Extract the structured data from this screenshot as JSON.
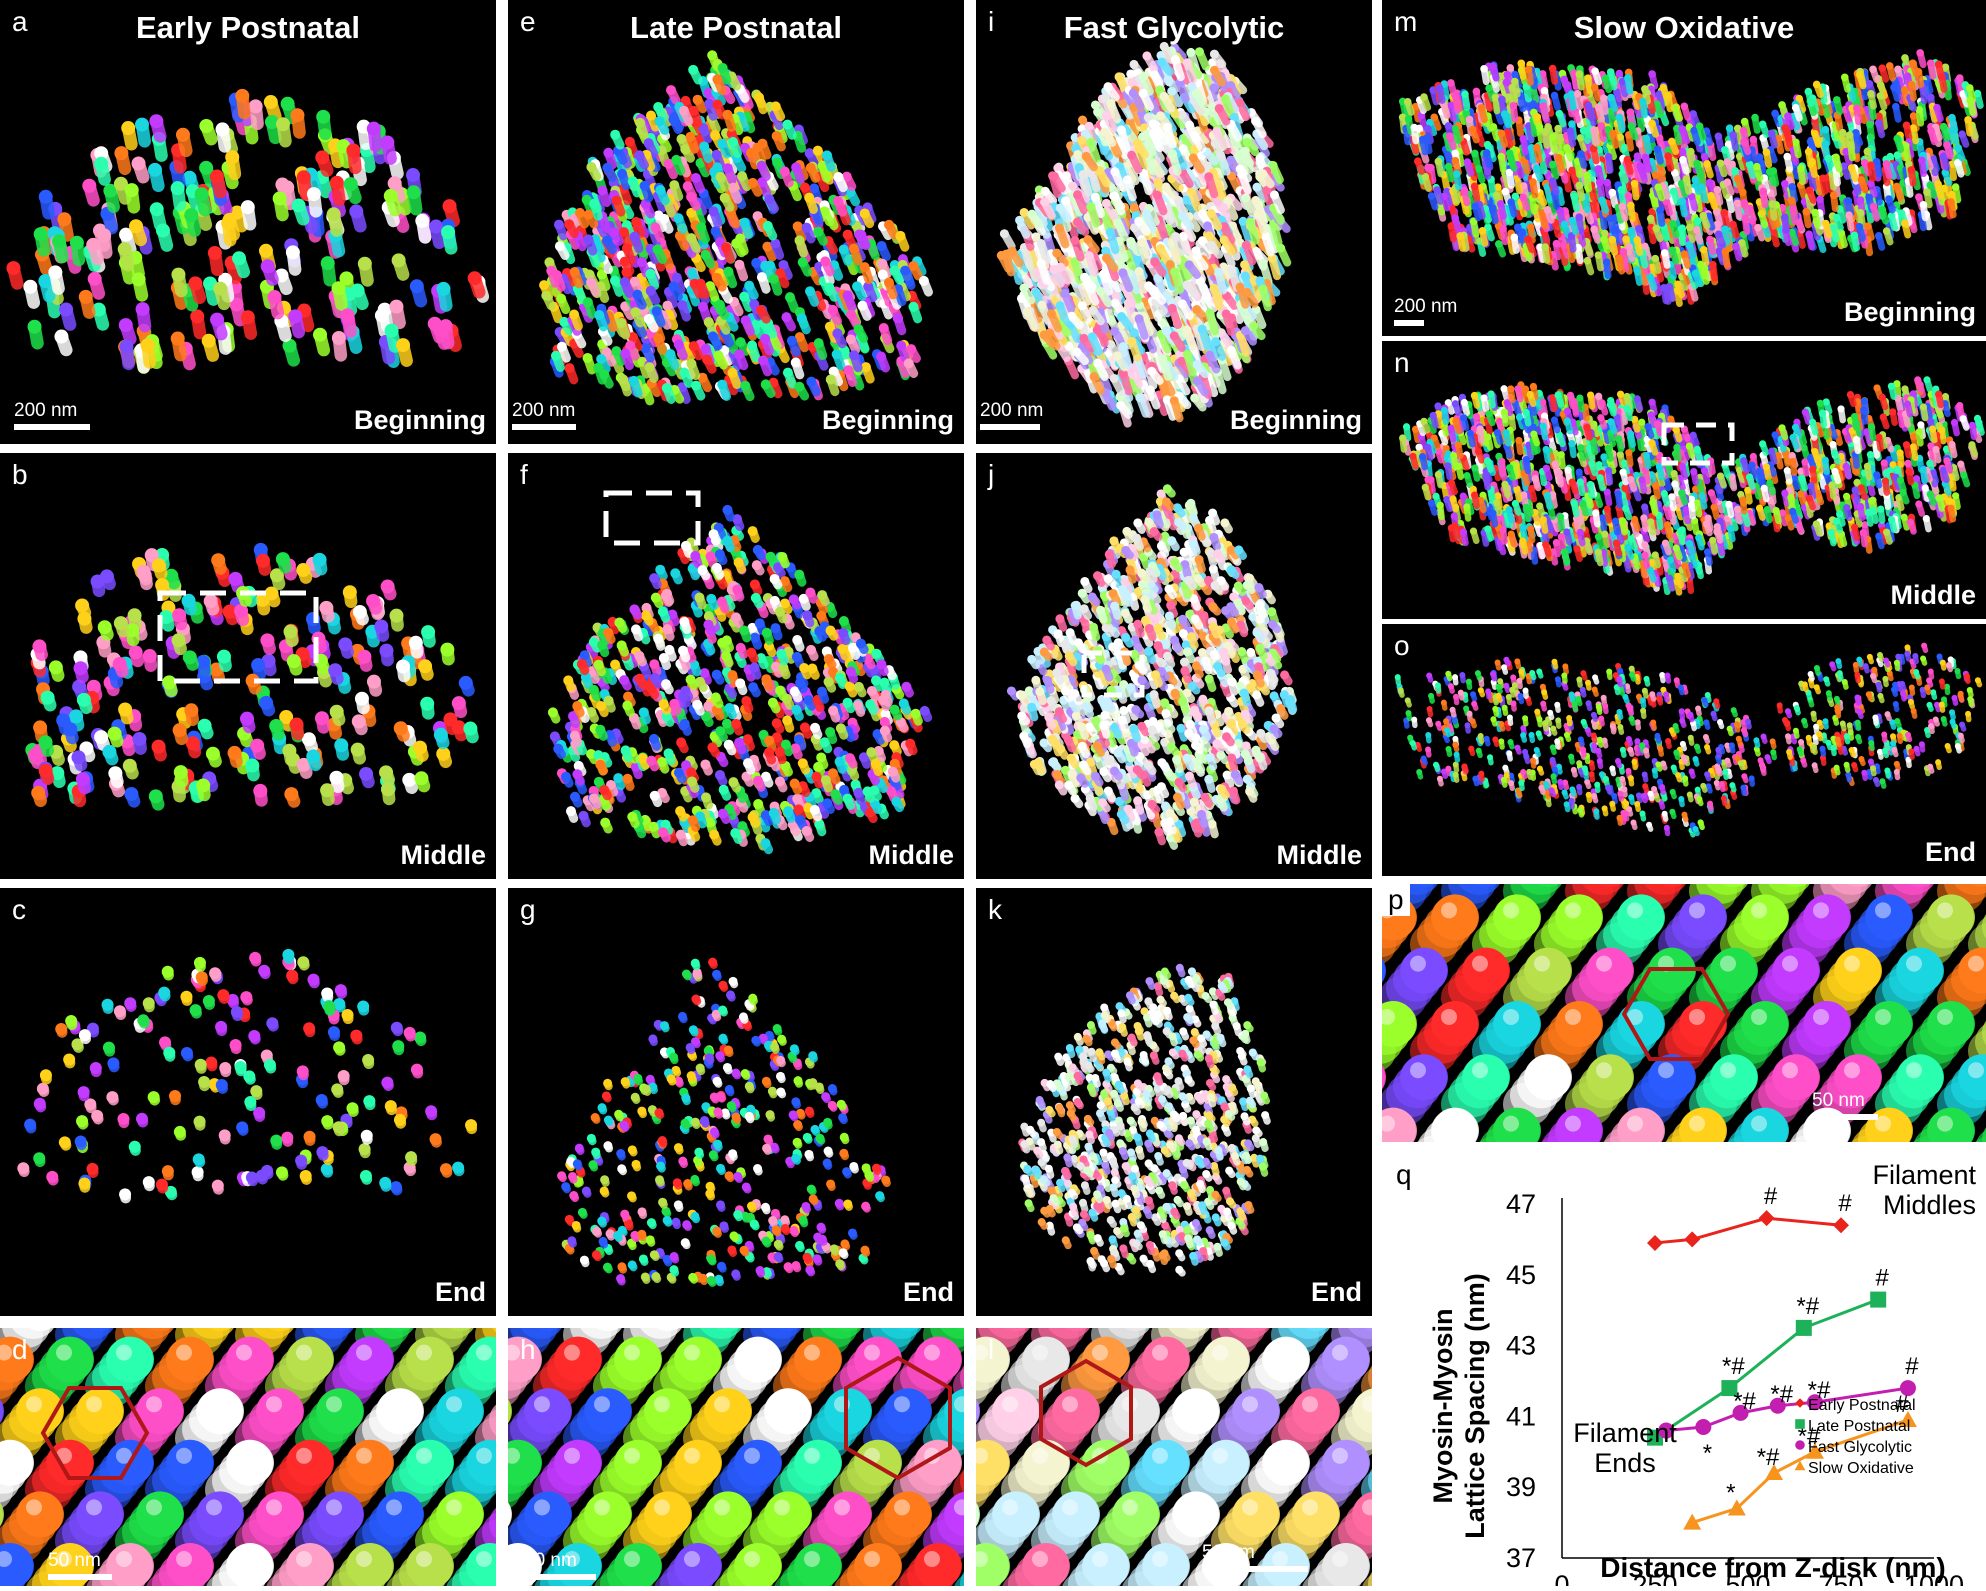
{
  "columns": [
    {
      "title": "Early Postnatal"
    },
    {
      "title": "Late Postnatal"
    },
    {
      "title": "Fast Glycolytic"
    },
    {
      "title": "Slow Oxidative"
    }
  ],
  "panels": [
    {
      "id": "a",
      "corner": "Beginning",
      "scale": "200 nm",
      "palette": "bright"
    },
    {
      "id": "b",
      "corner": "Middle",
      "palette": "bright"
    },
    {
      "id": "c",
      "corner": "End",
      "palette": "bright"
    },
    {
      "id": "d",
      "scale": "50 nm",
      "palette": "bright"
    },
    {
      "id": "e",
      "corner": "Beginning",
      "scale": "200 nm",
      "palette": "bright"
    },
    {
      "id": "f",
      "corner": "Middle",
      "palette": "bright"
    },
    {
      "id": "g",
      "corner": "End",
      "palette": "bright"
    },
    {
      "id": "h",
      "scale": "50 nm",
      "palette": "bright"
    },
    {
      "id": "i",
      "corner": "Beginning",
      "scale": "200 nm",
      "palette": "pastel"
    },
    {
      "id": "j",
      "corner": "Middle",
      "palette": "pastel"
    },
    {
      "id": "k",
      "corner": "End",
      "palette": "pastel"
    },
    {
      "id": "l",
      "scale": "50 nm",
      "palette": "pastel"
    },
    {
      "id": "m",
      "corner": "Beginning",
      "scale": "200 nm",
      "palette": "bright"
    },
    {
      "id": "n",
      "corner": "Middle",
      "palette": "bright"
    },
    {
      "id": "o",
      "corner": "End",
      "palette": "bright"
    },
    {
      "id": "p",
      "scale": "50 nm",
      "palette": "bright"
    },
    {
      "id": "q"
    }
  ],
  "colors": {
    "hexagon": "#b01818",
    "bright": [
      "#ff2a2a",
      "#ffd11a",
      "#1fe04a",
      "#2a5bff",
      "#c23bff",
      "#1ad6e0",
      "#ff7a1a",
      "#ff4fc8",
      "#9aff2a",
      "#ffffff",
      "#7a4bff",
      "#2affb0",
      "#ff9ec7",
      "#b8e04a"
    ],
    "pastel": [
      "#ffffff",
      "#f4f4d0",
      "#c8f0ff",
      "#ffd0e8",
      "#d8ffd0",
      "#ff6aa0",
      "#ffe066",
      "#66e0ff",
      "#a0ff66",
      "#ff9a40",
      "#b090ff",
      "#ffffff",
      "#e8e8e8"
    ]
  },
  "chart_data": {
    "type": "line",
    "panel_label": "q",
    "xlabel": "Distance from Z-disk (nm)",
    "ylabel_line1": "Myosin-Myosin",
    "ylabel_line2": "Lattice Spacing (nm)",
    "xlim": [
      0,
      1000
    ],
    "ylim": [
      37,
      47
    ],
    "xticks": [
      0,
      250,
      500,
      750,
      1000
    ],
    "yticks": [
      37,
      39,
      41,
      43,
      45,
      47
    ],
    "annotations": [
      {
        "line1": "Filament",
        "line2": "Middles"
      },
      {
        "line1": "Filament",
        "line2": "Ends"
      }
    ],
    "series": [
      {
        "name": "Early Postnatal",
        "color": "#e8241c",
        "marker": "diamond",
        "x": [
          250,
          350,
          550,
          750
        ],
        "y": [
          45.9,
          46.0,
          46.6,
          46.4
        ],
        "marks": [
          "",
          "",
          "#",
          "#"
        ]
      },
      {
        "name": "Late Postnatal",
        "color": "#1db15a",
        "marker": "square",
        "x": [
          250,
          450,
          650,
          850
        ],
        "y": [
          40.4,
          41.8,
          43.5,
          44.3
        ],
        "marks": [
          "",
          "*#",
          "*#",
          "#"
        ]
      },
      {
        "name": "Fast Glycolytic",
        "color": "#c21fb0",
        "marker": "circle",
        "x": [
          280,
          380,
          480,
          580,
          680,
          930
        ],
        "y": [
          40.6,
          40.7,
          41.1,
          41.3,
          41.4,
          41.8
        ],
        "marks": [
          "",
          "*",
          "*#",
          "*#",
          "*#",
          "#"
        ]
      },
      {
        "name": "Slow Oxidative",
        "color": "#f7941d",
        "marker": "triangle",
        "x": [
          350,
          470,
          570,
          680,
          930
        ],
        "y": [
          38.0,
          38.4,
          39.4,
          40.0,
          40.9
        ],
        "marks": [
          "",
          "*",
          "*#",
          "*#",
          "#"
        ]
      }
    ]
  }
}
